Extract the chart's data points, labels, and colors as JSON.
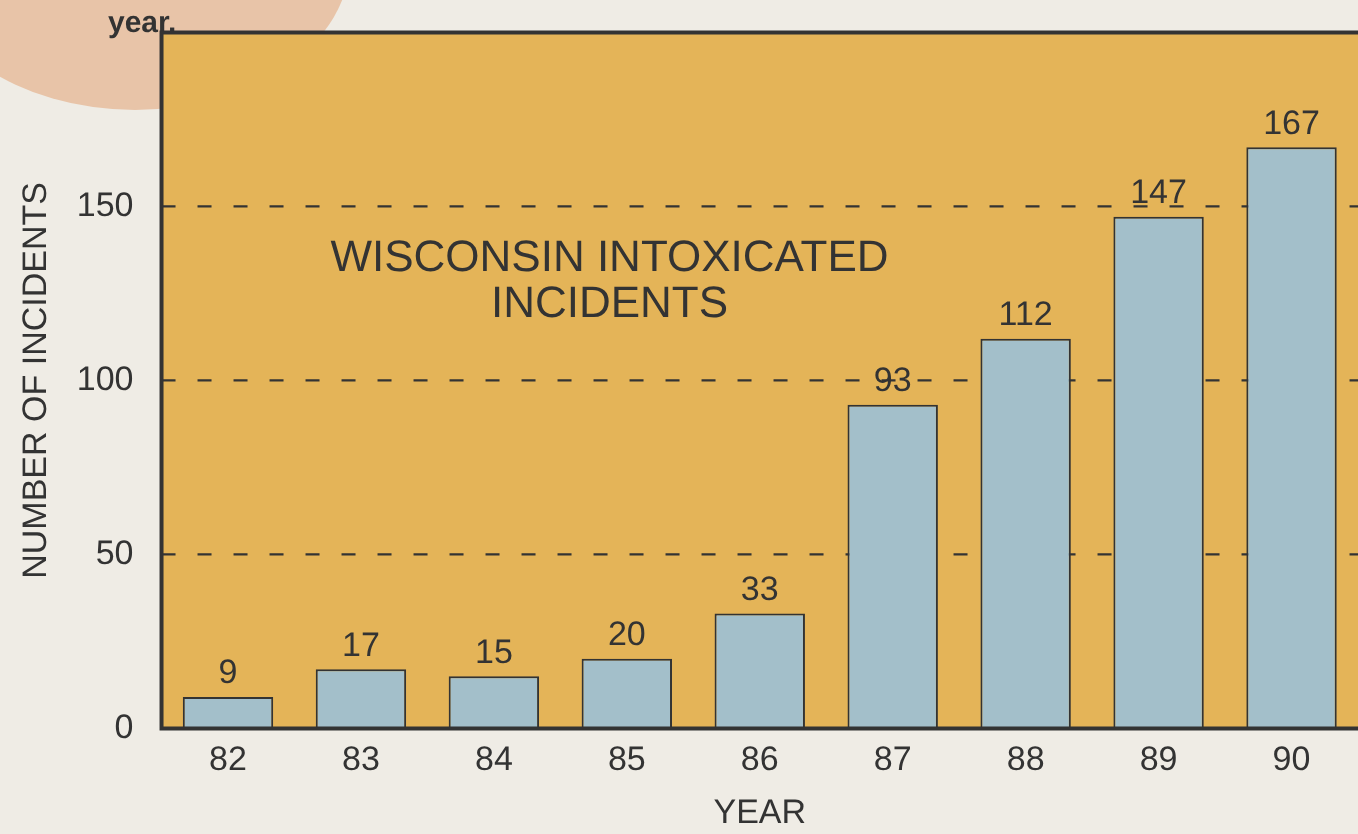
{
  "chart_data": {
    "type": "bar",
    "title": "WISCONSIN INTOXICATED\nINCIDENTS",
    "xlabel": "YEAR",
    "ylabel": "NUMBER OF INCIDENTS",
    "categories": [
      "82",
      "83",
      "84",
      "85",
      "86",
      "87",
      "88",
      "89",
      "90"
    ],
    "values": [
      9,
      17,
      15,
      20,
      33,
      93,
      112,
      147,
      167
    ],
    "color": "#a3bfca",
    "ylim": [
      0,
      200
    ],
    "yticks": [
      0,
      50,
      100,
      150
    ],
    "grid": "y",
    "data_labels": true,
    "annotations": [
      "year."
    ]
  }
}
